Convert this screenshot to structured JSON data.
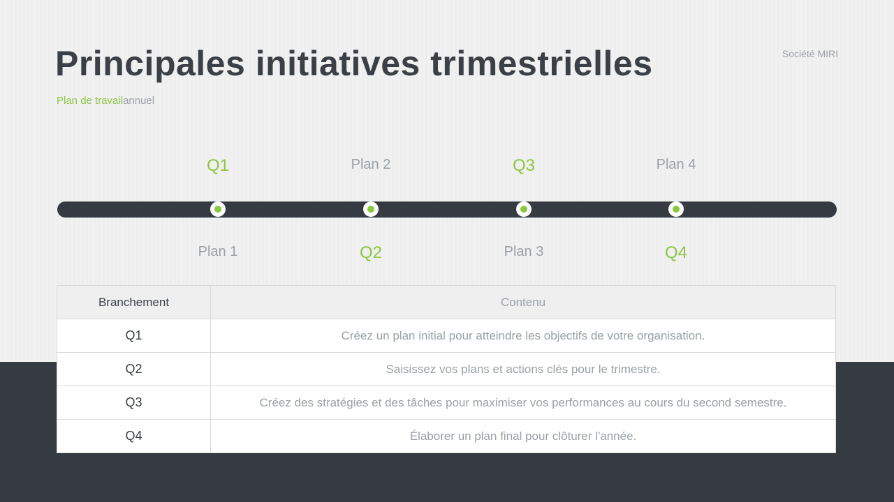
{
  "slide": {
    "title": "Principales initiatives trimestrielles",
    "subtitle": {
      "accent": "Plan de travail",
      "rest": "annuel"
    },
    "company": "Société MIRI"
  },
  "colors": {
    "accent_green": "#8cc63f",
    "dark_slate": "#363b41",
    "muted_gray": "#9aa0a6",
    "background": "#f1f1f2"
  },
  "timeline": {
    "milestones": [
      {
        "top": "Q1",
        "bottom": "Plan 1",
        "accent_position": "top"
      },
      {
        "top": "Plan 2",
        "bottom": "Q2",
        "accent_position": "bottom"
      },
      {
        "top": "Q3",
        "bottom": "Plan 3",
        "accent_position": "top"
      },
      {
        "top": "Plan 4",
        "bottom": "Q4",
        "accent_position": "bottom"
      }
    ]
  },
  "table": {
    "headers": {
      "branch": "Branchement",
      "content": "Contenu"
    },
    "rows": [
      {
        "branch": "Q1",
        "content": "Créez un plan initial pour atteindre les objectifs de votre organisation."
      },
      {
        "branch": "Q2",
        "content": "Saisissez vos plans et actions clés pour le trimestre."
      },
      {
        "branch": "Q3",
        "content": "Créez des stratégies et des tâches pour maximiser vos performances au cours du second semestre."
      },
      {
        "branch": "Q4",
        "content": "Élaborer un plan final pour clôturer l'année."
      }
    ]
  }
}
